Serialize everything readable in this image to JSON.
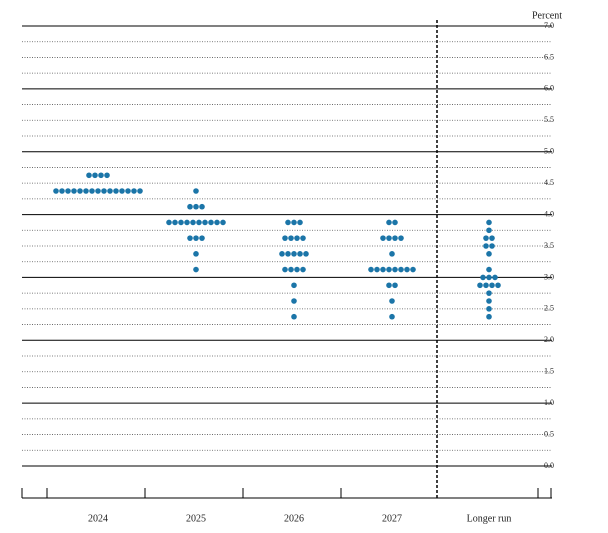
{
  "chart_data": {
    "type": "dot_plot",
    "ylabel": "Percent",
    "ylim": [
      0,
      7
    ],
    "yticks": [
      {
        "value": 0,
        "label": "0.0"
      },
      0.5,
      {
        "value": 1,
        "label": "1.0"
      },
      1.5,
      {
        "value": 2,
        "label": "2.0"
      },
      2.5,
      {
        "value": 3,
        "label": "3.0"
      },
      3.5,
      {
        "value": 4,
        "label": "4.0"
      },
      4.5,
      {
        "value": 5,
        "label": "5.0"
      },
      5.5,
      {
        "value": 6,
        "label": "6.0"
      },
      6.5,
      {
        "value": 7,
        "label": "7.0"
      }
    ],
    "ygrid": [
      0,
      0.25,
      0.5,
      0.75,
      1,
      1.25,
      1.5,
      1.75,
      2,
      2.25,
      2.5,
      2.75,
      3,
      3.25,
      3.5,
      3.75,
      4,
      4.25,
      4.5,
      4.75,
      5,
      5.25,
      5.5,
      5.75,
      6,
      6.25,
      6.5,
      6.75,
      7
    ],
    "color": "#1b75a8",
    "categories": [
      "2024",
      "2025",
      "2026",
      "2027",
      "Longer run"
    ],
    "groups": [
      {
        "values": [
          4.625,
          4.625,
          4.625,
          4.625,
          4.375,
          4.375,
          4.375,
          4.375,
          4.375,
          4.375,
          4.375,
          4.375,
          4.375,
          4.375,
          4.375,
          4.375,
          4.375,
          4.375,
          4.375
        ]
      },
      {
        "values": [
          4.375,
          4.125,
          4.125,
          4.125,
          3.875,
          3.875,
          3.875,
          3.875,
          3.875,
          3.875,
          3.875,
          3.875,
          3.875,
          3.875,
          3.625,
          3.625,
          3.625,
          3.375,
          3.125
        ]
      },
      {
        "values": [
          3.875,
          3.875,
          3.875,
          3.625,
          3.625,
          3.625,
          3.625,
          3.375,
          3.375,
          3.375,
          3.375,
          3.375,
          3.125,
          3.125,
          3.125,
          3.125,
          2.875,
          2.625,
          2.375
        ]
      },
      {
        "values": [
          3.875,
          3.875,
          3.625,
          3.625,
          3.625,
          3.625,
          3.375,
          3.125,
          3.125,
          3.125,
          3.125,
          3.125,
          3.125,
          3.125,
          3.125,
          2.875,
          2.875,
          2.625,
          2.375
        ]
      },
      {
        "values": [
          3.875,
          3.75,
          3.625,
          3.625,
          3.5,
          3.5,
          3.375,
          3.125,
          3,
          3,
          3,
          2.875,
          2.875,
          2.875,
          2.875,
          2.75,
          2.625,
          2.5,
          2.375
        ]
      }
    ]
  }
}
